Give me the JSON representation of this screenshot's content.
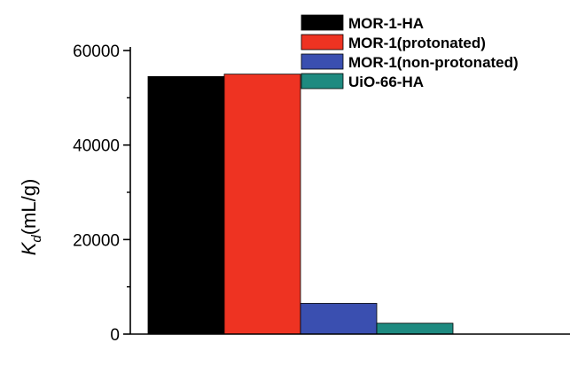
{
  "chart_data": {
    "type": "bar",
    "title": "",
    "xlabel": "",
    "ylabel": {
      "main": "K",
      "subscript": "d",
      "unit": "(mL/g)"
    },
    "ylim": [
      0,
      60000
    ],
    "yticks": [
      0,
      20000,
      40000,
      60000
    ],
    "ytick_labels": [
      "0",
      "20000",
      "40000",
      "60000"
    ],
    "grid": false,
    "legend_position": "top-right",
    "series": [
      {
        "name": "MOR-1-HA",
        "value": 54500,
        "color": "#000000"
      },
      {
        "name": "MOR-1(protonated)",
        "value": 55000,
        "color": "#ee3322"
      },
      {
        "name": "MOR-1(non-protonated)",
        "value": 6500,
        "color": "#3a4fb0"
      },
      {
        "name": "UiO-66-HA",
        "value": 2300,
        "color": "#1e8a80"
      }
    ]
  }
}
